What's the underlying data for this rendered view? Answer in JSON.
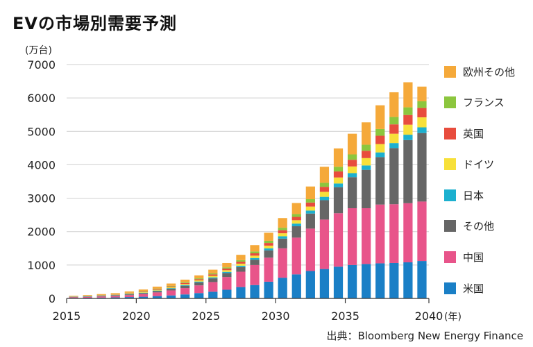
{
  "title": "EVの市場別需要予測",
  "chart_data": {
    "type": "bar",
    "stacked": true,
    "title": "EVの市場別需要予測",
    "ylabel": "(万台)",
    "xlabel": "(年)",
    "ylim": [
      0,
      7000
    ],
    "yticks": [
      0,
      1000,
      2000,
      3000,
      4000,
      5000,
      6000,
      7000
    ],
    "xtick_labels": [
      "2015",
      "2020",
      "2025",
      "2030",
      "2035",
      "2040"
    ],
    "categories": [
      "2015",
      "2016",
      "2017",
      "2018",
      "2019",
      "2020",
      "2021",
      "2022",
      "2023",
      "2024",
      "2025",
      "2026",
      "2027",
      "2028",
      "2029",
      "2030",
      "2031",
      "2032",
      "2033",
      "2034",
      "2035",
      "2036",
      "2037",
      "2038",
      "2039",
      "2040"
    ],
    "series": [
      {
        "name": "米国",
        "color": "#1a7fc6",
        "values": [
          15,
          20,
          25,
          30,
          40,
          50,
          70,
          90,
          120,
          160,
          200,
          260,
          340,
          400,
          500,
          620,
          720,
          820,
          880,
          950,
          1000,
          1030,
          1050,
          1060,
          1080,
          1120
        ]
      },
      {
        "name": "中国",
        "color": "#e8548a",
        "values": [
          20,
          25,
          35,
          45,
          60,
          80,
          110,
          150,
          190,
          230,
          290,
          380,
          460,
          600,
          720,
          880,
          1100,
          1270,
          1480,
          1600,
          1700,
          1670,
          1760,
          1760,
          1770,
          1780
        ]
      },
      {
        "name": "その他",
        "color": "#666666",
        "values": [
          10,
          12,
          15,
          18,
          22,
          30,
          40,
          50,
          70,
          90,
          110,
          120,
          140,
          160,
          220,
          290,
          340,
          450,
          580,
          780,
          930,
          1150,
          1420,
          1680,
          1890,
          2050
        ]
      },
      {
        "name": "日本",
        "color": "#1cb0cf",
        "values": [
          5,
          6,
          7,
          8,
          10,
          12,
          15,
          18,
          20,
          25,
          30,
          35,
          40,
          50,
          60,
          70,
          80,
          90,
          100,
          110,
          120,
          130,
          140,
          150,
          160,
          170
        ]
      },
      {
        "name": "ドイツ",
        "color": "#f7e03a",
        "values": [
          5,
          6,
          8,
          10,
          15,
          18,
          22,
          25,
          30,
          35,
          45,
          50,
          60,
          70,
          80,
          90,
          100,
          120,
          150,
          180,
          200,
          220,
          250,
          280,
          300,
          300
        ]
      },
      {
        "name": "英国",
        "color": "#e84c3d",
        "values": [
          5,
          6,
          8,
          10,
          12,
          15,
          20,
          25,
          30,
          35,
          45,
          50,
          60,
          70,
          80,
          90,
          100,
          120,
          150,
          180,
          200,
          220,
          250,
          280,
          290,
          280
        ]
      },
      {
        "name": "フランス",
        "color": "#8cc63e",
        "values": [
          5,
          6,
          7,
          8,
          10,
          12,
          15,
          18,
          22,
          25,
          30,
          35,
          45,
          55,
          65,
          75,
          85,
          100,
          120,
          140,
          160,
          180,
          200,
          220,
          230,
          200
        ]
      },
      {
        "name": "欧州その他",
        "color": "#f5a93a",
        "values": [
          15,
          20,
          25,
          30,
          40,
          50,
          60,
          70,
          80,
          90,
          110,
          130,
          160,
          190,
          240,
          290,
          330,
          380,
          480,
          550,
          620,
          670,
          710,
          740,
          750,
          440
        ]
      }
    ]
  },
  "legend_order": [
    7,
    6,
    5,
    4,
    3,
    2,
    1,
    0
  ],
  "source": "出典：Bloomberg New Energy Finance"
}
